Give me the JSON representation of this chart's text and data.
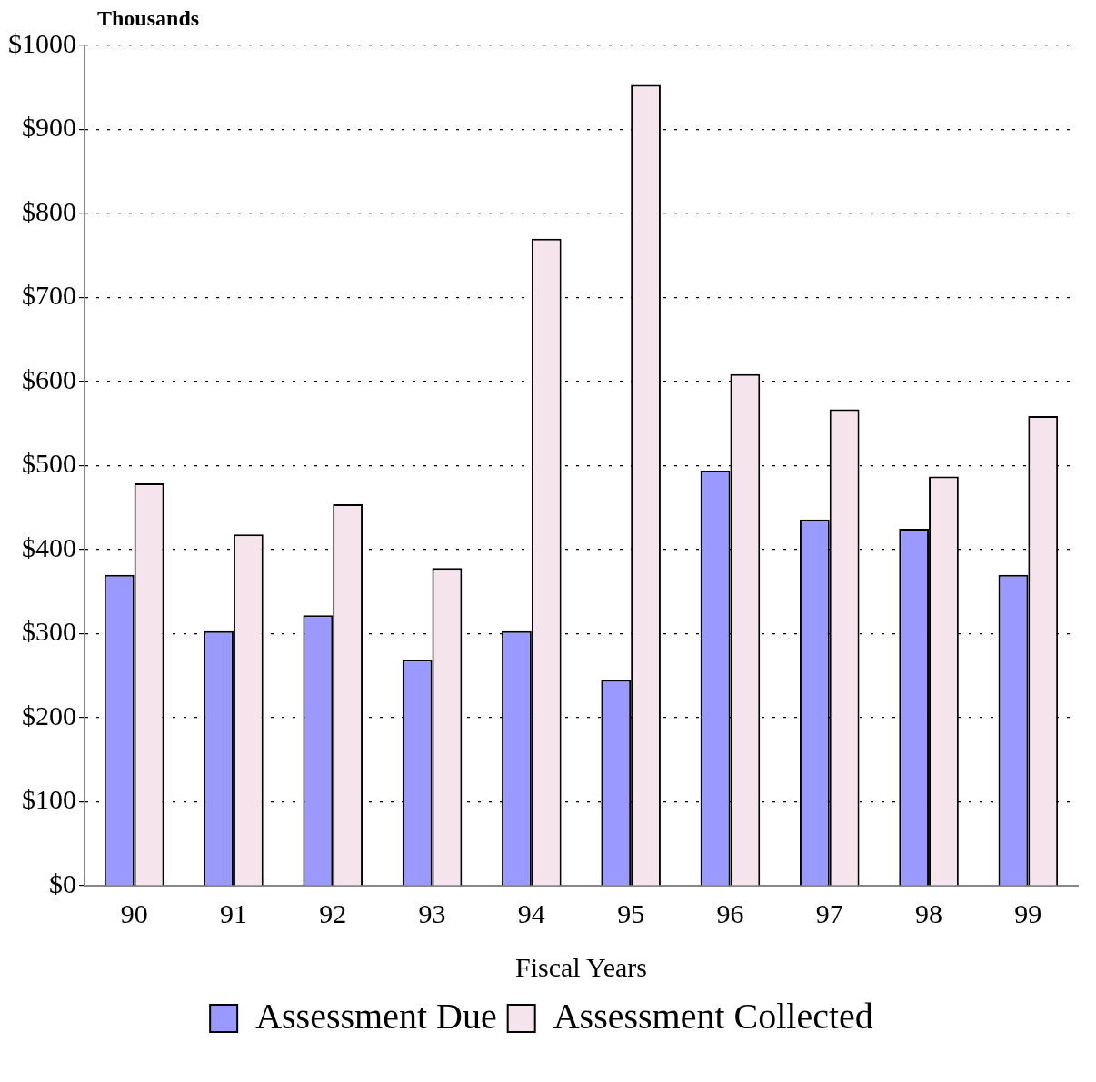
{
  "chart_data": {
    "type": "bar",
    "ylabel": "Thousands",
    "xlabel": "Fiscal Years",
    "categories": [
      "90",
      "91",
      "92",
      "93",
      "94",
      "95",
      "96",
      "97",
      "98",
      "99"
    ],
    "series": [
      {
        "name": "Assessment Due",
        "color": "#9999ff",
        "values": [
          370,
          303,
          322,
          269,
          303,
          245,
          494,
          436,
          425,
          370
        ]
      },
      {
        "name": "Assessment Collected",
        "color": "#f6e4ec",
        "values": [
          479,
          418,
          454,
          378,
          770,
          953,
          609,
          567,
          487,
          559
        ]
      }
    ],
    "ylim": [
      0,
      1000
    ],
    "yticks": [
      {
        "value": 0,
        "label": "$0"
      },
      {
        "value": 100,
        "label": "$100"
      },
      {
        "value": 200,
        "label": "$200"
      },
      {
        "value": 300,
        "label": "$300"
      },
      {
        "value": 400,
        "label": "$400"
      },
      {
        "value": 500,
        "label": "$500"
      },
      {
        "value": 600,
        "label": "$600"
      },
      {
        "value": 700,
        "label": "$700"
      },
      {
        "value": 800,
        "label": "$800"
      },
      {
        "value": 900,
        "label": "$900"
      },
      {
        "value": 1000,
        "label": "$1000"
      }
    ],
    "grid": "y",
    "legend": "bottom"
  }
}
